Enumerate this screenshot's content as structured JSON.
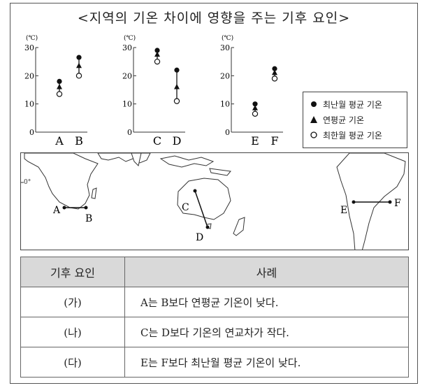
{
  "title": "<지역의 기온 차이에 영향을 주는 기후 요인>",
  "chart_data": [
    {
      "type": "scatter",
      "unit": "(℃)",
      "yticks": [
        "30",
        "20",
        "10",
        "0"
      ],
      "ylim": [
        0,
        30
      ],
      "categories": [
        "A",
        "B"
      ],
      "series": [
        {
          "name": "최난월 평균 기온",
          "values": [
            18,
            26.5
          ]
        },
        {
          "name": "연평균 기온",
          "values": [
            16,
            23.5
          ]
        },
        {
          "name": "최한월 평균 기온",
          "values": [
            13.5,
            20
          ]
        }
      ]
    },
    {
      "type": "scatter",
      "unit": "(℃)",
      "yticks": [
        "30",
        "20",
        "10",
        "0"
      ],
      "ylim": [
        0,
        30
      ],
      "categories": [
        "C",
        "D"
      ],
      "series": [
        {
          "name": "최난월 평균 기온",
          "values": [
            29,
            22
          ]
        },
        {
          "name": "연평균 기온",
          "values": [
            27.5,
            16
          ]
        },
        {
          "name": "최한월 평균 기온",
          "values": [
            25,
            11
          ]
        }
      ]
    },
    {
      "type": "scatter",
      "unit": "(℃)",
      "yticks": [
        "30",
        "20",
        "10",
        "0"
      ],
      "ylim": [
        0,
        30
      ],
      "categories": [
        "E",
        "F"
      ],
      "series": [
        {
          "name": "최난월 평균 기온",
          "values": [
            10,
            22.5
          ]
        },
        {
          "name": "연평균 기온",
          "values": [
            8.5,
            21
          ]
        },
        {
          "name": "최한월 평균 기온",
          "values": [
            6.5,
            19
          ]
        }
      ]
    }
  ],
  "legend": {
    "items": [
      {
        "symbol": "filled-circle",
        "label": "최난월 평균 기온"
      },
      {
        "symbol": "triangle",
        "label": "연평균 기온"
      },
      {
        "symbol": "open-circle",
        "label": "최한월 평균 기온"
      }
    ]
  },
  "map": {
    "equator_label": "0°",
    "points": [
      "A",
      "B",
      "C",
      "D",
      "E",
      "F"
    ]
  },
  "table": {
    "headers": [
      "기후 요인",
      "사례"
    ],
    "rows": [
      {
        "factor": "(가)",
        "example": "A는 B보다 연평균 기온이 낮다."
      },
      {
        "factor": "(나)",
        "example": "C는 D보다 기온의 연교차가 작다."
      },
      {
        "factor": "(다)",
        "example": "E는 F보다 최난월 평균 기온이 낮다."
      }
    ]
  }
}
